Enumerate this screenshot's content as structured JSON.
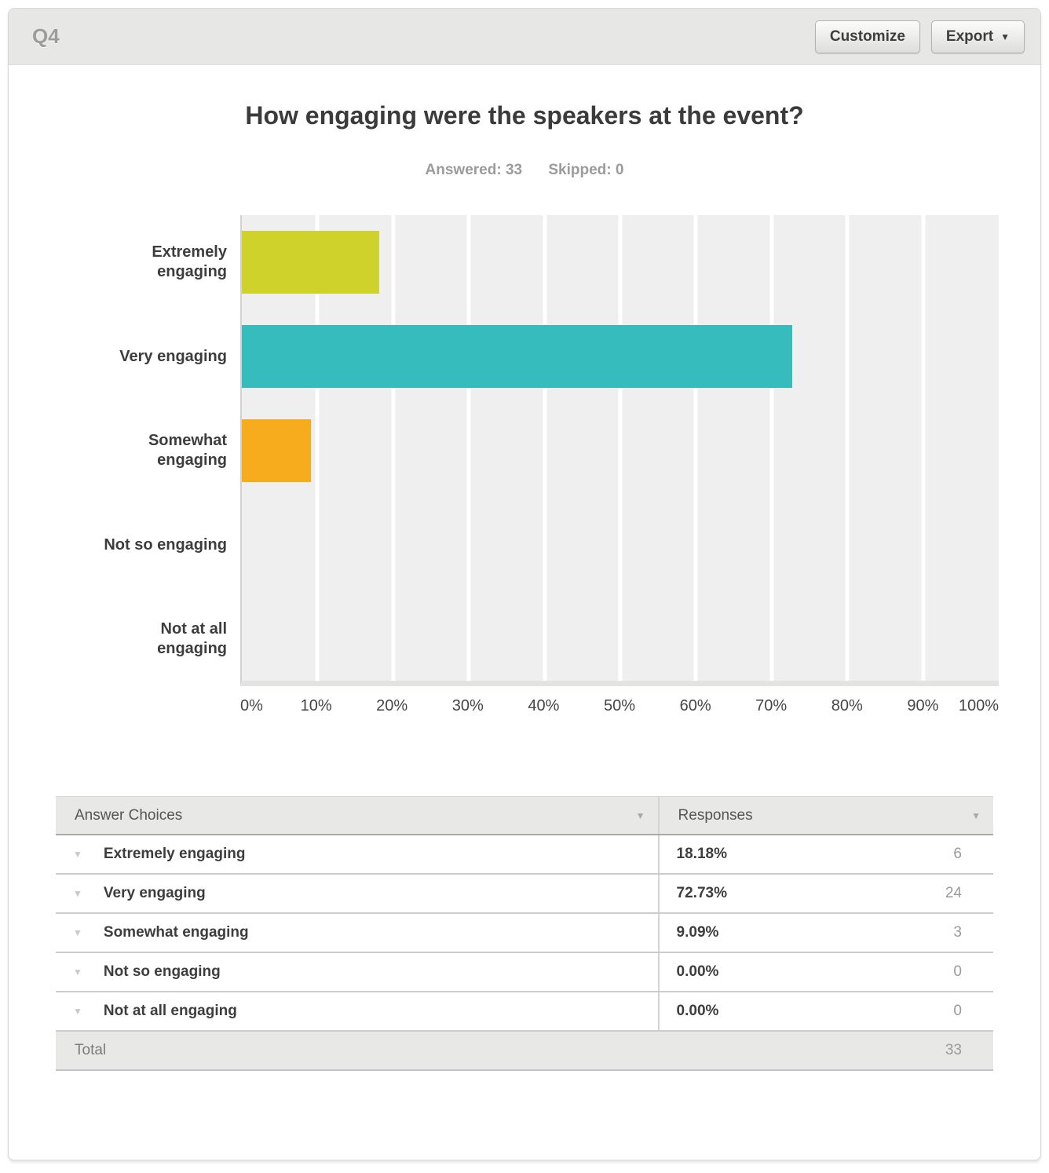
{
  "header": {
    "question_number": "Q4",
    "customize_label": "Customize",
    "export_label": "Export"
  },
  "title": "How engaging were the speakers at the event?",
  "stats": {
    "answered_label": "Answered:",
    "answered_value": "33",
    "skipped_label": "Skipped:",
    "skipped_value": "0"
  },
  "chart_data": {
    "type": "bar",
    "orientation": "horizontal",
    "title": "How engaging were the speakers at the event?",
    "categories": [
      "Extremely engaging",
      "Very engaging",
      "Somewhat engaging",
      "Not so engaging",
      "Not at all engaging"
    ],
    "values": [
      18.18,
      72.73,
      9.09,
      0,
      0
    ],
    "colors": [
      "#ced22b",
      "#36bcbd",
      "#f6ac1d",
      null,
      null
    ],
    "x_ticks": [
      "0%",
      "10%",
      "20%",
      "30%",
      "40%",
      "50%",
      "60%",
      "70%",
      "80%",
      "90%",
      "100%"
    ],
    "xlim": [
      0,
      100
    ],
    "xlabel": "",
    "ylabel": "",
    "grid": "vertical-white-on-gray",
    "plot_bg": "#efefef",
    "gridline_color": "#ffffff",
    "legend": "none"
  },
  "table": {
    "columns": [
      "Answer Choices",
      "Responses"
    ],
    "rows": [
      {
        "label": "Extremely engaging",
        "percent": "18.18%",
        "count": "6"
      },
      {
        "label": "Very engaging",
        "percent": "72.73%",
        "count": "24"
      },
      {
        "label": "Somewhat engaging",
        "percent": "9.09%",
        "count": "3"
      },
      {
        "label": "Not so engaging",
        "percent": "0.00%",
        "count": "0"
      },
      {
        "label": "Not at all engaging",
        "percent": "0.00%",
        "count": "0"
      }
    ],
    "total_label": "Total",
    "total_count": "33"
  }
}
